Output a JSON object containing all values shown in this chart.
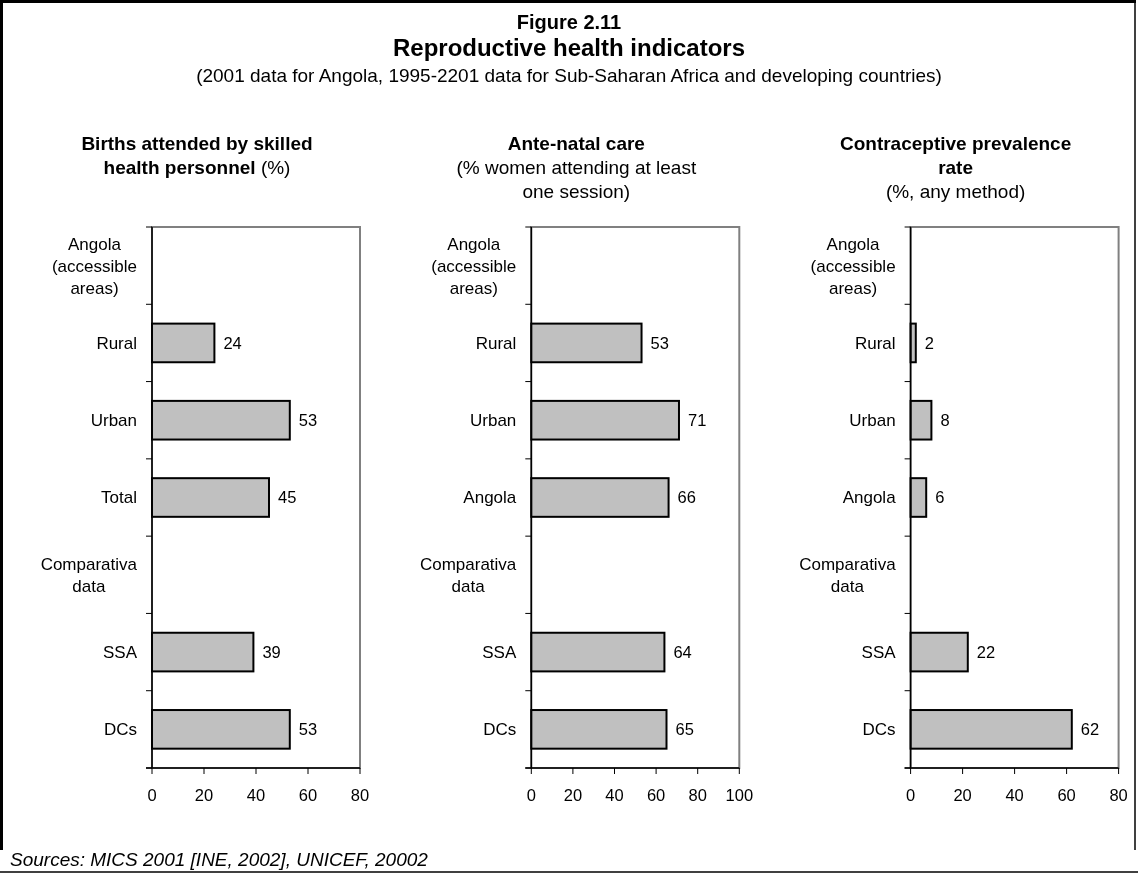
{
  "chart_data": [
    {
      "type": "other",
      "title": "Reproductive health indicators",
      "subtitle": "(2001 data for Angola, 1995-2201 data for Sub-Saharan Africa and developing countries)",
      "annotations": [
        "Figure 2.11",
        "Sources: MICS 2001 [INE, 2002], UNICEF, 20002"
      ]
    },
    {
      "type": "bar",
      "orientation": "horizontal",
      "title": "Births attended by skilled health personnel (%)",
      "categories": [
        "Angola (accessible areas)",
        "Rural",
        "Urban",
        "Total",
        "Comparativa data",
        "SSA",
        "DCs"
      ],
      "values": [
        null,
        24,
        53,
        45,
        null,
        39,
        53
      ],
      "color": "#c0c0c0",
      "xlim": [
        0,
        80
      ],
      "xticks": [
        0,
        20,
        40,
        60,
        80
      ],
      "data_labels": true
    },
    {
      "type": "bar",
      "orientation": "horizontal",
      "title": "Ante-natal care",
      "subtitle": "(% women attending at least one session)",
      "categories": [
        "Angola (accessible areas)",
        "Rural",
        "Urban",
        "Angola",
        "Comparativa data",
        "SSA",
        "DCs"
      ],
      "values": [
        null,
        53,
        71,
        66,
        null,
        64,
        65
      ],
      "color": "#c0c0c0",
      "xlim": [
        0,
        100
      ],
      "xticks": [
        0,
        20,
        40,
        60,
        80,
        100
      ],
      "data_labels": true
    },
    {
      "type": "bar",
      "orientation": "horizontal",
      "title": "Contraceptive prevalence rate",
      "subtitle": "(%, any method)",
      "categories": [
        "Angola (accessible areas)",
        "Rural",
        "Urban",
        "Angola",
        "Comparativa data",
        "SSA",
        "DCs"
      ],
      "values": [
        null,
        2,
        8,
        6,
        null,
        22,
        62
      ],
      "color": "#c0c0c0",
      "xlim": [
        0,
        80
      ],
      "xticks": [
        0,
        20,
        40,
        60,
        80
      ],
      "data_labels": true
    }
  ]
}
